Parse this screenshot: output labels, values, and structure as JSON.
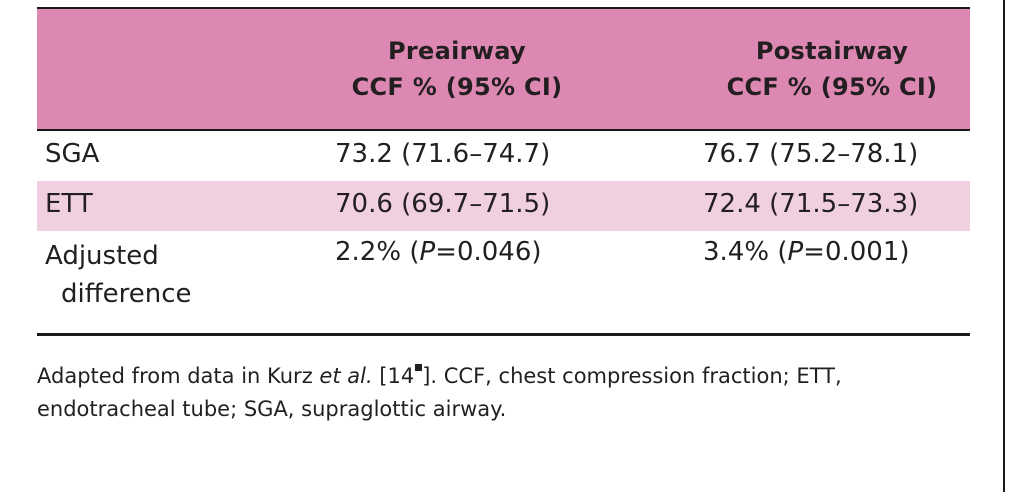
{
  "table": {
    "header": {
      "pre_line1": "Preairway",
      "pre_line2": "CCF % (95% CI)",
      "post_line1": "Postairway",
      "post_line2": "CCF % (95% CI)"
    },
    "rows": [
      {
        "label": "SGA",
        "pre": "73.2 (71.6–74.7)",
        "post": "76.7 (75.2–78.1)"
      },
      {
        "label": "ETT",
        "pre": "70.6 (69.7–71.5)",
        "post": "72.4 (71.5–73.3)"
      }
    ],
    "adjusted": {
      "label_line1": "Adjusted",
      "label_line2": "difference",
      "pre_value": "2.2% (",
      "pre_p": "P",
      "pre_rest": "=0.046)",
      "post_value": "3.4% (",
      "post_p": "P",
      "post_rest": "=0.001)"
    }
  },
  "footnote": {
    "part1": "Adapted from data in Kurz ",
    "etal": "et al.",
    "part2": " [14",
    "part3": "]. CCF, chest compression fraction; ETT, endotracheal tube; SGA, supraglottic airway."
  },
  "colors": {
    "header_bg": "#dd88b3",
    "alt_row_bg": "#f0cfe1",
    "text": "#231f20"
  }
}
